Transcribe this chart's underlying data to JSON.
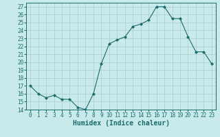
{
  "x": [
    0,
    1,
    2,
    3,
    4,
    5,
    6,
    7,
    8,
    9,
    10,
    11,
    12,
    13,
    14,
    15,
    16,
    17,
    18,
    19,
    20,
    21,
    22,
    23
  ],
  "y": [
    17,
    16,
    15.5,
    15.8,
    15.3,
    15.3,
    14.3,
    14.0,
    16.0,
    19.8,
    22.3,
    22.8,
    23.2,
    24.5,
    24.8,
    25.3,
    27.0,
    27.0,
    25.5,
    25.5,
    23.2,
    21.3,
    21.3,
    19.8
  ],
  "line_color": "#1a6b6b",
  "marker": "D",
  "marker_size": 2,
  "bg_color": "#c8eaea",
  "grid_color": "#b0d0d0",
  "xlabel": "Humidex (Indice chaleur)",
  "xlim": [
    -0.5,
    23.5
  ],
  "ylim": [
    14,
    27.5
  ],
  "yticks": [
    14,
    15,
    16,
    17,
    18,
    19,
    20,
    21,
    22,
    23,
    24,
    25,
    26,
    27
  ],
  "xtick_labels": [
    "0",
    "1",
    "2",
    "3",
    "4",
    "5",
    "6",
    "7",
    "8",
    "9",
    "10",
    "11",
    "12",
    "13",
    "14",
    "15",
    "16",
    "17",
    "18",
    "19",
    "20",
    "21",
    "22",
    "23"
  ],
  "tick_color": "#1a6b6b",
  "xlabel_fontsize": 7,
  "tick_fontsize": 5.5
}
